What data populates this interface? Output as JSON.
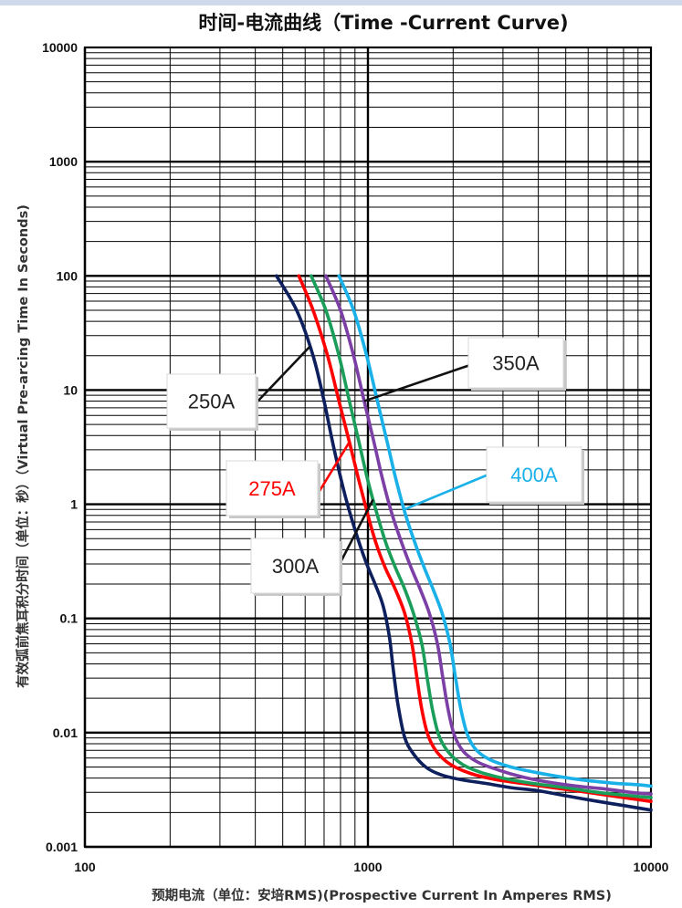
{
  "chart_data": {
    "type": "line",
    "title": "时间-电流曲线（Time -Current Curve)",
    "xlabel": "预期电流（单位：安培RMS)(Prospective Current In Amperes RMS)",
    "ylabel": "有效弧前焦耳积分时间（单位：秒）（Virtual Pre-arcing Time In Seconds)",
    "x_scale": "log",
    "y_scale": "log",
    "xlim": [
      100,
      10000
    ],
    "ylim": [
      0.001,
      10000
    ],
    "x_ticks": [
      "100",
      "1000",
      "10000"
    ],
    "y_ticks": [
      "10000",
      "1000",
      "100",
      "10",
      "1",
      "0.1",
      "0.01",
      "0.001"
    ],
    "grid": true,
    "series": [
      {
        "name": "250A",
        "color": "#0d1f5c",
        "x": [
          475,
          560,
          640,
          700,
          760,
          830,
          900,
          980,
          1060,
          1130,
          1190,
          1230,
          1280,
          1350,
          1450,
          1600,
          1800,
          2100,
          2600,
          3200,
          4000,
          5000,
          6500,
          8000,
          10000
        ],
        "y": [
          100,
          50,
          20,
          8,
          3,
          1.2,
          0.6,
          0.32,
          0.2,
          0.13,
          0.07,
          0.035,
          0.017,
          0.009,
          0.0065,
          0.005,
          0.0043,
          0.0039,
          0.0036,
          0.0033,
          0.0031,
          0.0028,
          0.0025,
          0.0023,
          0.0021
        ]
      },
      {
        "name": "275A",
        "color": "#ff0000",
        "x": [
          570,
          640,
          720,
          790,
          860,
          930,
          1000,
          1070,
          1150,
          1250,
          1350,
          1430,
          1490,
          1550,
          1630,
          1750,
          1950,
          2300,
          2800,
          3500,
          4500,
          6000,
          8000,
          10000
        ],
        "y": [
          100,
          50,
          20,
          8,
          3.5,
          1.6,
          0.8,
          0.45,
          0.28,
          0.18,
          0.11,
          0.06,
          0.03,
          0.016,
          0.0095,
          0.0068,
          0.0053,
          0.0044,
          0.0039,
          0.0036,
          0.0033,
          0.003,
          0.0027,
          0.0025
        ]
      },
      {
        "name": "300A",
        "color": "#1a9e5a",
        "x": [
          630,
          710,
          790,
          860,
          930,
          1000,
          1080,
          1160,
          1250,
          1350,
          1450,
          1550,
          1620,
          1690,
          1780,
          1920,
          2150,
          2500,
          3000,
          3800,
          5000,
          6500,
          8500,
          10000
        ],
        "y": [
          100,
          50,
          20,
          8,
          3.5,
          1.6,
          0.8,
          0.45,
          0.28,
          0.18,
          0.11,
          0.06,
          0.03,
          0.016,
          0.0095,
          0.0068,
          0.0053,
          0.0045,
          0.004,
          0.0036,
          0.0033,
          0.003,
          0.0028,
          0.0027
        ]
      },
      {
        "name": "350A",
        "color": "#7b3fa6",
        "x": [
          710,
          800,
          890,
          970,
          1050,
          1130,
          1220,
          1320,
          1420,
          1530,
          1650,
          1760,
          1840,
          1920,
          2020,
          2180,
          2450,
          2900,
          3500,
          4300,
          5500,
          7000,
          8500,
          10000
        ],
        "y": [
          100,
          50,
          20,
          8,
          3.5,
          1.6,
          0.8,
          0.45,
          0.28,
          0.18,
          0.11,
          0.06,
          0.03,
          0.016,
          0.0095,
          0.0068,
          0.0055,
          0.0047,
          0.0041,
          0.0037,
          0.0034,
          0.0032,
          0.003,
          0.0029
        ]
      },
      {
        "name": "400A",
        "color": "#1ab0e8",
        "x": [
          790,
          890,
          990,
          1080,
          1170,
          1260,
          1360,
          1470,
          1580,
          1700,
          1830,
          1950,
          2040,
          2130,
          2250,
          2420,
          2700,
          3200,
          3900,
          4800,
          6000,
          7500,
          9000,
          10000
        ],
        "y": [
          100,
          50,
          20,
          8,
          3.5,
          1.6,
          0.8,
          0.45,
          0.28,
          0.18,
          0.11,
          0.06,
          0.03,
          0.016,
          0.0095,
          0.007,
          0.0058,
          0.005,
          0.0045,
          0.0041,
          0.0038,
          0.0036,
          0.0035,
          0.0034
        ]
      }
    ],
    "annotations": [
      {
        "text": "250A",
        "color": "#222222",
        "target_series": "250A"
      },
      {
        "text": "275A",
        "color": "#ff0000",
        "target_series": "275A"
      },
      {
        "text": "300A",
        "color": "#222222",
        "target_series": "300A"
      },
      {
        "text": "350A",
        "color": "#222222",
        "target_series": "350A"
      },
      {
        "text": "400A",
        "color": "#1ab0e8",
        "target_series": "400A"
      }
    ]
  }
}
